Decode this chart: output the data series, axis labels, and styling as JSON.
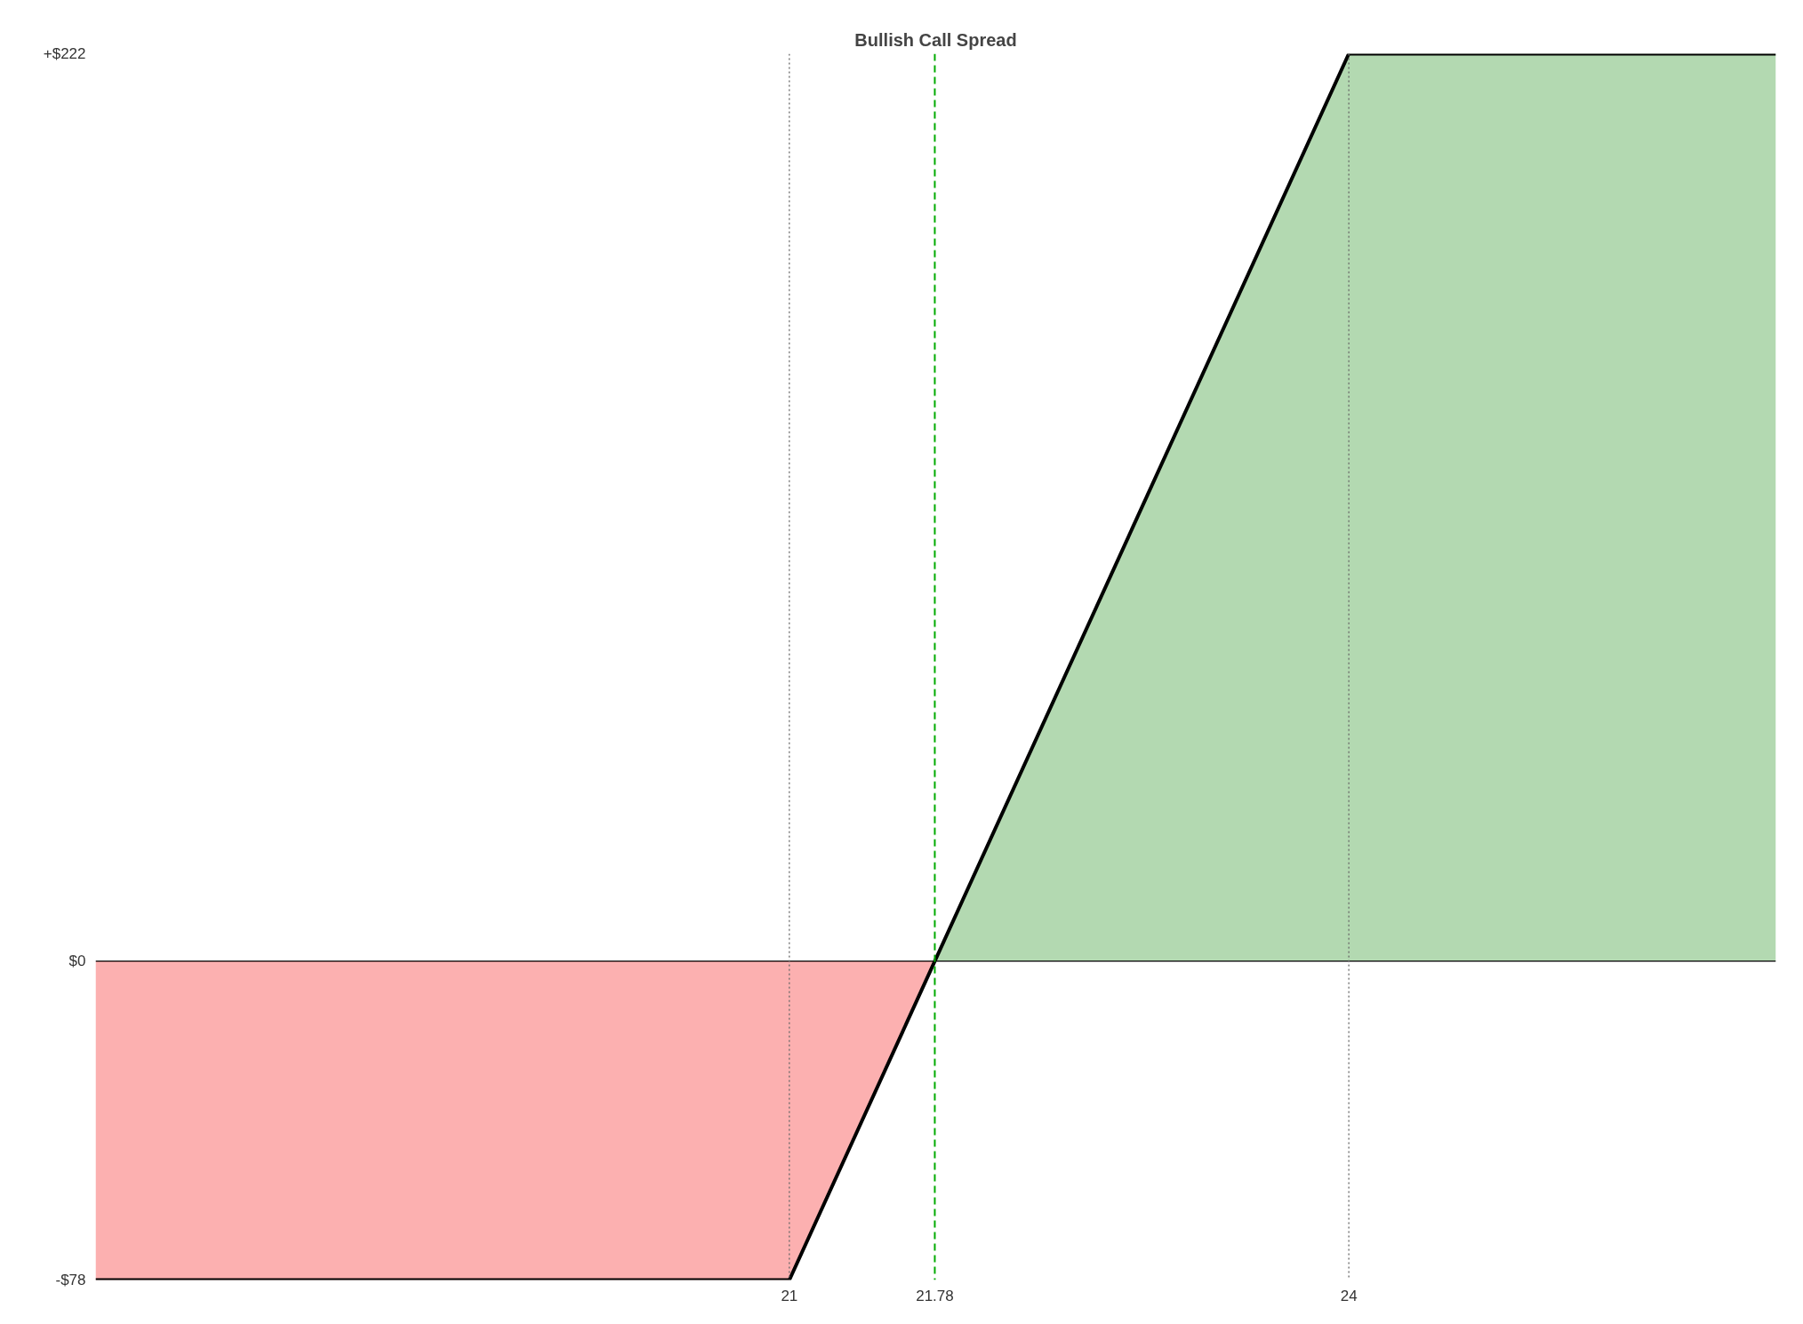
{
  "chart_data": {
    "type": "line",
    "title": "Bullish Call Spread",
    "xlim": [
      17.28,
      26.29
    ],
    "xticks": [
      21,
      21.78,
      24
    ],
    "ylim": [
      -78,
      222
    ],
    "yticks": [
      {
        "value": -78,
        "label": "-$78"
      },
      {
        "value": 0,
        "label": "$0"
      },
      {
        "value": 222,
        "label": "+$222"
      }
    ],
    "grid": false,
    "marker": "none",
    "series": [
      {
        "type": "area",
        "color": "#fcb0b0",
        "x": [
          17.28,
          21,
          21.78
        ],
        "values": [
          -78,
          -78,
          0
        ]
      },
      {
        "type": "area",
        "color": "#b3d9b1",
        "x": [
          21.78,
          24,
          26.29
        ],
        "values": [
          0,
          222,
          222
        ]
      },
      {
        "color": "#000000",
        "line_style": "solid",
        "x": [
          17.28,
          21,
          24,
          26.29
        ],
        "values": [
          -78,
          -78,
          222,
          222
        ]
      }
    ],
    "ref_lines": [
      {
        "axis": "y",
        "value": 0,
        "color": "#000000",
        "line_style": "solid"
      },
      {
        "axis": "x",
        "value": 21,
        "color": "#666666",
        "line_style": "dotted"
      },
      {
        "axis": "x",
        "value": 24,
        "color": "#666666",
        "line_style": "dotted"
      },
      {
        "axis": "x",
        "value": 21.78,
        "color": "#00aa00",
        "line_style": "dashed"
      }
    ]
  }
}
